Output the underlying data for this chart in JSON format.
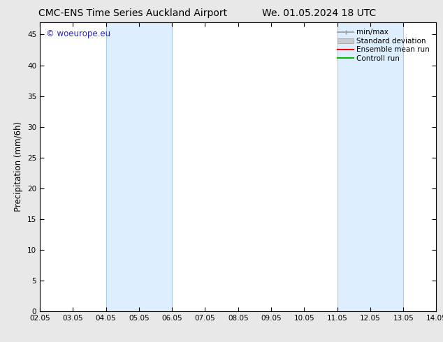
{
  "title_left": "CMC-ENS Time Series Auckland Airport",
  "title_right": "We. 01.05.2024 18 UTC",
  "ylabel": "Precipitation (mm/6h)",
  "ylim": [
    0,
    47
  ],
  "yticks": [
    0,
    5,
    10,
    15,
    20,
    25,
    30,
    35,
    40,
    45
  ],
  "xtick_labels": [
    "02.05",
    "03.05",
    "04.05",
    "05.05",
    "06.05",
    "07.05",
    "08.05",
    "09.05",
    "10.05",
    "11.05",
    "12.05",
    "13.05",
    "14.05"
  ],
  "shaded_regions": [
    {
      "xstart": 4.0,
      "xend": 6.0,
      "color": "#ddeeff"
    },
    {
      "xstart": 11.0,
      "xend": 13.0,
      "color": "#ddeeff"
    }
  ],
  "shaded_edge_color": "#aaccee",
  "watermark_text": "© woeurope.eu",
  "watermark_color": "#2222cc",
  "fig_bg_color": "#e8e8e8",
  "plot_bg_color": "#ffffff",
  "title_fontsize": 10,
  "ylabel_fontsize": 8.5,
  "tick_fontsize": 7.5,
  "legend_fontsize": 7.5,
  "legend_entries": [
    {
      "label": "min/max",
      "color": "#999999",
      "style": "minmax"
    },
    {
      "label": "Standard deviation",
      "color": "#cccccc",
      "style": "stddev"
    },
    {
      "label": "Ensemble mean run",
      "color": "#ff0000",
      "style": "line"
    },
    {
      "label": "Controll run",
      "color": "#00bb00",
      "style": "line"
    }
  ]
}
